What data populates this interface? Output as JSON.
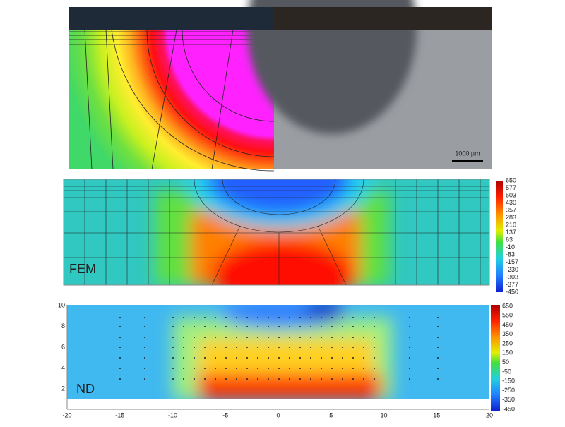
{
  "top_panel": {
    "scale_bar": "1000 µm"
  },
  "fem_panel": {
    "label": "FEM",
    "colorbar_ticks": [
      "650",
      "577",
      "503",
      "430",
      "357",
      "283",
      "210",
      "137",
      "63",
      "-10",
      "-83",
      "-157",
      "-230",
      "-303",
      "-377",
      "-450"
    ]
  },
  "nd_panel": {
    "label": "ND",
    "colorbar_ticks": [
      "650",
      "550",
      "450",
      "350",
      "250",
      "150",
      "50",
      "-50",
      "-150",
      "-250",
      "-350",
      "-450"
    ],
    "x_ticks": [
      "-20",
      "-15",
      "-10",
      "-5",
      "0",
      "5",
      "10",
      "15",
      "20"
    ],
    "y_ticks": [
      "10",
      "8",
      "6",
      "4",
      "2"
    ]
  }
}
